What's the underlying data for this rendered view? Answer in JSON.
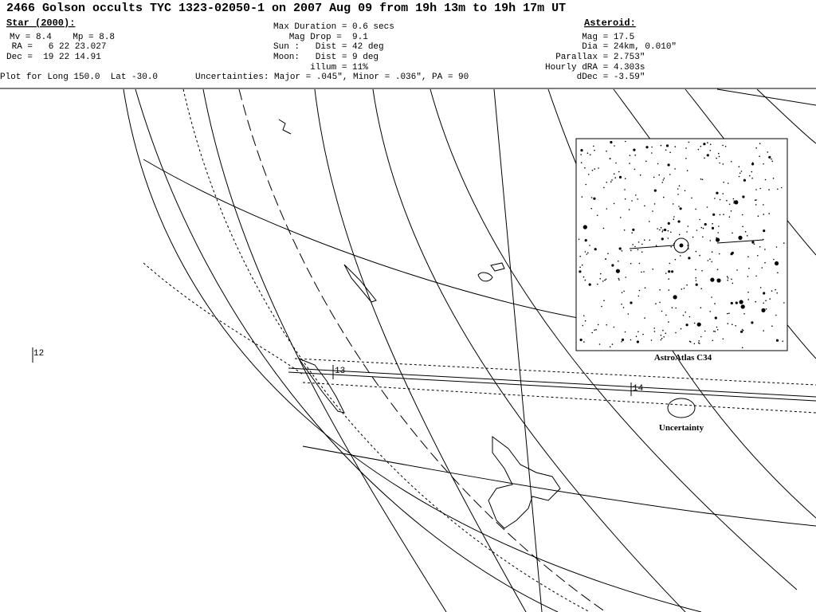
{
  "header": {
    "title": "2466 Golson occults TYC 1323-02050-1 on 2007 Aug 09 from 19h 13m to 19h 17m UT",
    "star": {
      "heading": "Star (2000):",
      "lines": [
        "Mv = 8.4    Mp = 8.8",
        " RA =   6 22 23.027",
        "Dec =  19 22 14.91"
      ]
    },
    "event": {
      "lines": [
        "Max Duration = 0.6 secs",
        "   Mag Drop =  9.1",
        "Sun :   Dist = 42 deg",
        "Moon:   Dist = 9 deg",
        "       illum = 11%"
      ]
    },
    "asteroid": {
      "heading": "Asteroid:",
      "lines": [
        "       Mag = 17.5",
        "       Dia = 24km, 0.010\"",
        "  Parallax = 2.753\"",
        "Hourly dRA = 4.303s",
        "      dDec = -3.59\""
      ]
    },
    "plot_location": "Plot for Long 150.0  Lat -30.0",
    "uncertainties": "Uncertainties: Major = .045\", Minor = .036\", PA = 90"
  },
  "map": {
    "time_labels": [
      "12",
      "13",
      "14"
    ],
    "inset_caption": "AstroAtlas C34",
    "ellipse_caption": "Uncertainty"
  }
}
